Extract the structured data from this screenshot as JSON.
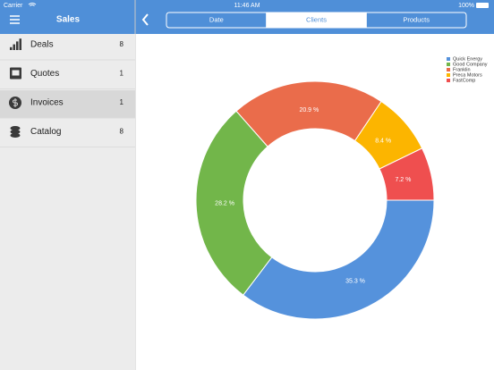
{
  "status_bar": {
    "carrier": "Carrier",
    "time": "11:46 AM",
    "battery": "100%"
  },
  "sidebar": {
    "title": "Sales",
    "selected": 2,
    "items": [
      {
        "label": "Deals",
        "count": 8
      },
      {
        "label": "Quotes",
        "count": 1
      },
      {
        "label": "Invoices",
        "count": 1
      },
      {
        "label": "Catalog",
        "count": 8
      }
    ]
  },
  "segments": {
    "items": [
      "Date",
      "Clients",
      "Products"
    ],
    "selected": 1
  },
  "chart_data": {
    "type": "pie",
    "categories": [
      "Quick Energy",
      "Good Company",
      "Franklin",
      "Preca Motors",
      "FastComp"
    ],
    "values": [
      35.3,
      28.2,
      20.9,
      8.4,
      7.2
    ],
    "value_labels": [
      "35.3 %",
      "28.2 %",
      "20.9 %",
      "8.4 %",
      "7.2 %"
    ],
    "colors": [
      "#5592dc",
      "#72b64a",
      "#ea6c4b",
      "#fcb500",
      "#ef4f4f"
    ],
    "legend": "top-right"
  }
}
